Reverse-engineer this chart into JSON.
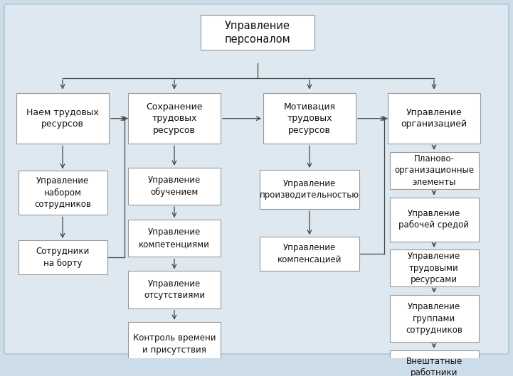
{
  "bg_outer": "#ccdce8",
  "bg_inner": "#dde8f0",
  "box_face": "#ffffff",
  "box_edge": "#999999",
  "text_color": "#111111",
  "arrow_color": "#444444",
  "line_color": "#444444",
  "title": "Управление\nперсоналом",
  "col0_header": "Наем трудовых\nресурсов",
  "col0_items": [
    "Управление\nнабором\nсотрудников",
    "Сотрудники\nна борту"
  ],
  "col1_header": "Сохранение\nтрудовых\nресурсов",
  "col1_items": [
    "Управление\nобучением",
    "Управление\nкомпетенциями",
    "Управление\nотсутствиями",
    "Контроль времени\nи присутствия"
  ],
  "col2_header": "Мотивация\nтрудовых\nресурсов",
  "col2_items": [
    "Управление\nпроизводительностью",
    "Управление\nкомпенсацией"
  ],
  "col3_header": "Управление\nорганизацией",
  "col3_items": [
    "Планово-\nорганизационные\nэлементы",
    "Управление\nрабочей средой",
    "Управление\nтрудовыми\nресурсами",
    "Управление\nгруппами\nсотрудников",
    "Внештатные\nработники"
  ],
  "figsize": [
    7.21,
    5.29
  ],
  "dpi": 100
}
